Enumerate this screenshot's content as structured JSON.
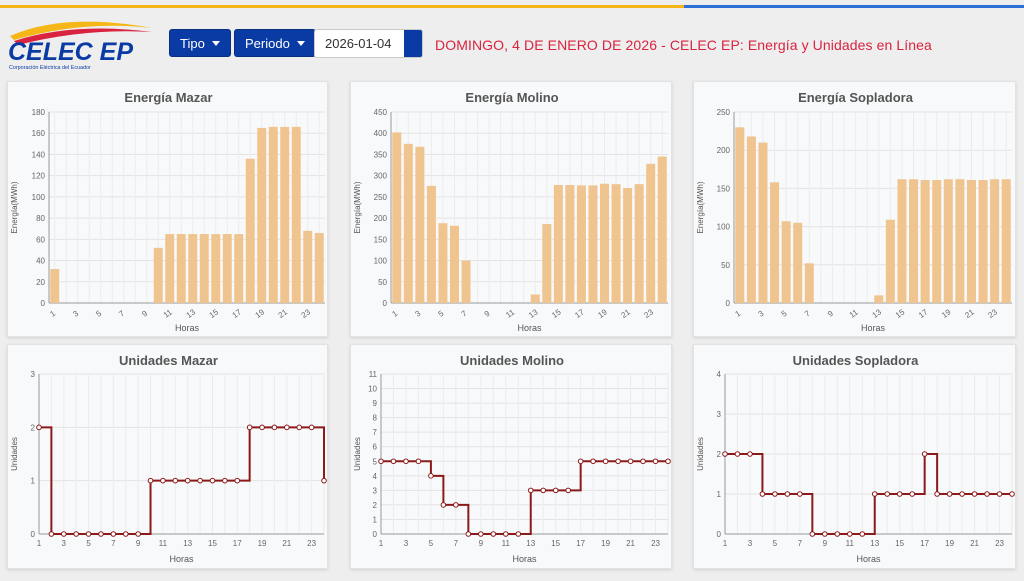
{
  "header": {
    "logo_text": "CELEC EP",
    "logo_subtitle": "Corporación Eléctrica del Ecuador",
    "tipo_label": "Tipo",
    "periodo_label": "Periodo",
    "date_value": "2026-01-04",
    "headline": "DOMINGO, 4 DE ENERO DE 2026 - CELEC EP: Energía y Unidades en Línea"
  },
  "colors": {
    "bar": "#f0c48e",
    "line": "#8b1a1a",
    "title": "#555555",
    "accent": "#d9233f",
    "button": "#0a3aa3"
  },
  "chart_data": [
    {
      "type": "bar",
      "title": "Energía Mazar",
      "xlabel": "Horas",
      "ylabel": "Energía(MWh)",
      "ylim": [
        0,
        180
      ],
      "yticks": [
        0,
        20,
        40,
        60,
        80,
        100,
        120,
        140,
        160,
        180
      ],
      "xtick_labels": [
        "1",
        "3",
        "5",
        "7",
        "9",
        "11",
        "13",
        "15",
        "17",
        "19",
        "21",
        "23"
      ],
      "x": [
        1,
        2,
        3,
        4,
        5,
        6,
        7,
        8,
        9,
        10,
        11,
        12,
        13,
        14,
        15,
        16,
        17,
        18,
        19,
        20,
        21,
        22,
        23,
        24
      ],
      "values": [
        32,
        0,
        0,
        0,
        0,
        0,
        0,
        0,
        0,
        52,
        65,
        65,
        65,
        65,
        65,
        65,
        65,
        136,
        165,
        166,
        166,
        166,
        68,
        66
      ],
      "grid": true
    },
    {
      "type": "bar",
      "title": "Energía Molino",
      "xlabel": "Horas",
      "ylabel": "Energía(MWh)",
      "ylim": [
        0,
        450
      ],
      "yticks": [
        0,
        50,
        100,
        150,
        200,
        250,
        300,
        350,
        400,
        450
      ],
      "xtick_labels": [
        "1",
        "3",
        "5",
        "7",
        "9",
        "11",
        "13",
        "15",
        "17",
        "19",
        "21",
        "23"
      ],
      "x": [
        1,
        2,
        3,
        4,
        5,
        6,
        7,
        8,
        9,
        10,
        11,
        12,
        13,
        14,
        15,
        16,
        17,
        18,
        19,
        20,
        21,
        22,
        23,
        24
      ],
      "values": [
        402,
        375,
        368,
        276,
        188,
        182,
        100,
        0,
        0,
        0,
        0,
        0,
        20,
        186,
        278,
        278,
        277,
        277,
        281,
        280,
        271,
        280,
        328,
        345
      ],
      "grid": true
    },
    {
      "type": "bar",
      "title": "Energía Sopladora",
      "xlabel": "Horas",
      "ylabel": "Energía(MWh)",
      "ylim": [
        0,
        250
      ],
      "yticks": [
        0,
        50,
        100,
        150,
        200,
        250
      ],
      "xtick_labels": [
        "1",
        "3",
        "5",
        "7",
        "9",
        "11",
        "13",
        "15",
        "17",
        "19",
        "21",
        "23"
      ],
      "x": [
        1,
        2,
        3,
        4,
        5,
        6,
        7,
        8,
        9,
        10,
        11,
        12,
        13,
        14,
        15,
        16,
        17,
        18,
        19,
        20,
        21,
        22,
        23,
        24
      ],
      "values": [
        230,
        218,
        210,
        158,
        107,
        105,
        52,
        0,
        0,
        0,
        0,
        0,
        10,
        109,
        162,
        162,
        161,
        161,
        162,
        162,
        161,
        161,
        162,
        162
      ],
      "grid": true
    },
    {
      "type": "line",
      "step": true,
      "title": "Unidades Mazar",
      "xlabel": "Horas",
      "ylabel": "Unidades",
      "ylim": [
        0,
        3
      ],
      "yticks": [
        0,
        1,
        2,
        3
      ],
      "xtick_labels": [
        "1",
        "3",
        "5",
        "7",
        "9",
        "11",
        "13",
        "15",
        "17",
        "19",
        "21",
        "23"
      ],
      "x": [
        1,
        2,
        3,
        4,
        5,
        6,
        7,
        8,
        9,
        10,
        11,
        12,
        13,
        14,
        15,
        16,
        17,
        18,
        19,
        20,
        21,
        22,
        23,
        24
      ],
      "values": [
        2,
        0,
        0,
        0,
        0,
        0,
        0,
        0,
        0,
        1,
        1,
        1,
        1,
        1,
        1,
        1,
        1,
        2,
        2,
        2,
        2,
        2,
        2,
        1
      ],
      "grid": true
    },
    {
      "type": "line",
      "step": true,
      "title": "Unidades Molino",
      "xlabel": "Horas",
      "ylabel": "Unidades",
      "ylim": [
        0,
        11
      ],
      "yticks": [
        0,
        1,
        2,
        3,
        4,
        5,
        6,
        7,
        8,
        9,
        10,
        11
      ],
      "xtick_labels": [
        "1",
        "3",
        "5",
        "7",
        "9",
        "11",
        "13",
        "15",
        "17",
        "19",
        "21",
        "23"
      ],
      "x": [
        1,
        2,
        3,
        4,
        5,
        6,
        7,
        8,
        9,
        10,
        11,
        12,
        13,
        14,
        15,
        16,
        17,
        18,
        19,
        20,
        21,
        22,
        23,
        24
      ],
      "values": [
        5,
        5,
        5,
        5,
        4,
        2,
        2,
        0,
        0,
        0,
        0,
        0,
        3,
        3,
        3,
        3,
        5,
        5,
        5,
        5,
        5,
        5,
        5,
        5
      ],
      "grid": true
    },
    {
      "type": "line",
      "step": true,
      "title": "Unidades Sopladora",
      "xlabel": "Horas",
      "ylabel": "Unidades",
      "ylim": [
        0,
        4
      ],
      "yticks": [
        0,
        1,
        2,
        3,
        4
      ],
      "xtick_labels": [
        "1",
        "3",
        "5",
        "7",
        "9",
        "11",
        "13",
        "15",
        "17",
        "19",
        "21",
        "23"
      ],
      "x": [
        1,
        2,
        3,
        4,
        5,
        6,
        7,
        8,
        9,
        10,
        11,
        12,
        13,
        14,
        15,
        16,
        17,
        18,
        19,
        20,
        21,
        22,
        23,
        24
      ],
      "values": [
        2,
        2,
        2,
        1,
        1,
        1,
        1,
        0,
        0,
        0,
        0,
        0,
        1,
        1,
        1,
        1,
        2,
        1,
        1,
        1,
        1,
        1,
        1,
        1
      ],
      "grid": true
    }
  ]
}
